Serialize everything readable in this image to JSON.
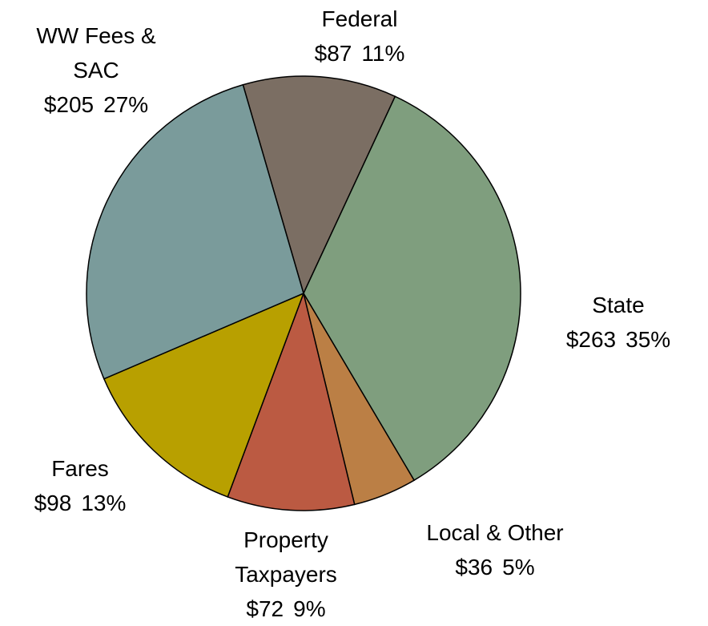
{
  "chart_data": {
    "type": "pie",
    "categories": [
      "Federal",
      "State",
      "Local & Other",
      "Property Taxpayers",
      "Fares",
      "WW Fees & SAC"
    ],
    "values": [
      87,
      263,
      36,
      72,
      98,
      205
    ],
    "value_labels": [
      "$87",
      "$263",
      "$36",
      "$72",
      "$98",
      "$205"
    ],
    "percent_labels": [
      "11%",
      "35%",
      "5%",
      "9%",
      "13%",
      "27%"
    ],
    "colors": [
      "#7b6e63",
      "#7f9e7e",
      "#bb7f45",
      "#bb5a42",
      "#b8a000",
      "#7a9b9b"
    ]
  }
}
